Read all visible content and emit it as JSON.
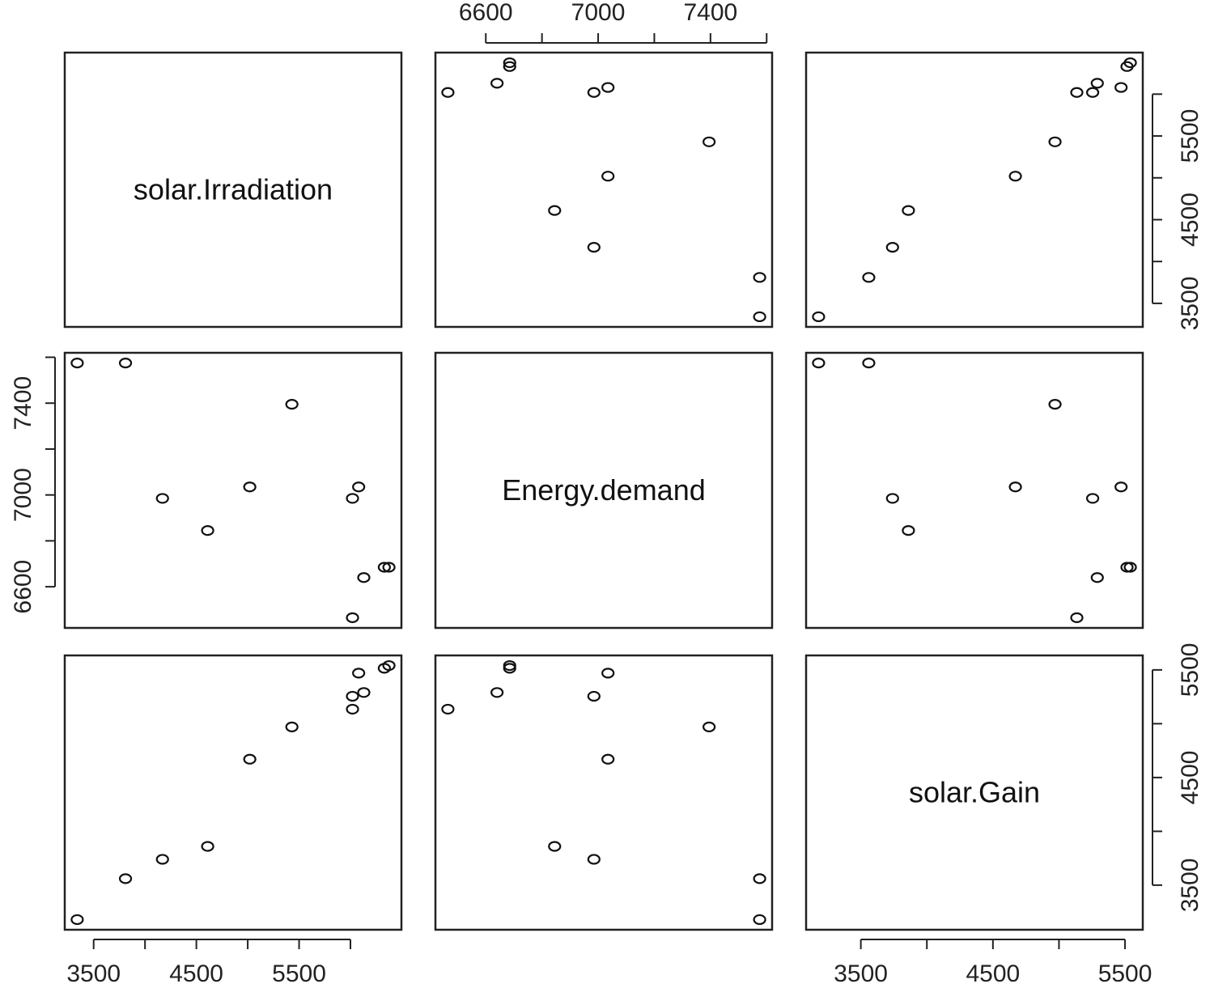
{
  "chart_data": {
    "type": "scatter",
    "subtype": "pairs-matrix",
    "variables": [
      "solar.Irradiation",
      "Energy.demand",
      "solar.Gain"
    ],
    "observations": [
      {
        "solar.Irradiation": 3340,
        "Energy.demand": 7575,
        "solar.Gain": 3180
      },
      {
        "solar.Irradiation": 3810,
        "Energy.demand": 7575,
        "solar.Gain": 3560
      },
      {
        "solar.Irradiation": 4170,
        "Energy.demand": 6985,
        "solar.Gain": 3740
      },
      {
        "solar.Irradiation": 4610,
        "Energy.demand": 6845,
        "solar.Gain": 3860
      },
      {
        "solar.Irradiation": 5020,
        "Energy.demand": 7035,
        "solar.Gain": 4670
      },
      {
        "solar.Irradiation": 5430,
        "Energy.demand": 7395,
        "solar.Gain": 4970
      },
      {
        "solar.Irradiation": 6020,
        "Energy.demand": 6465,
        "solar.Gain": 5135
      },
      {
        "solar.Irradiation": 6020,
        "Energy.demand": 6985,
        "solar.Gain": 5255
      },
      {
        "solar.Irradiation": 6080,
        "Energy.demand": 7035,
        "solar.Gain": 5470
      },
      {
        "solar.Irradiation": 6130,
        "Energy.demand": 6640,
        "solar.Gain": 5290
      },
      {
        "solar.Irradiation": 6330,
        "Energy.demand": 6685,
        "solar.Gain": 5515
      },
      {
        "solar.Irradiation": 6375,
        "Energy.demand": 6685,
        "solar.Gain": 5540
      }
    ],
    "axes": {
      "solar.Irradiation": {
        "ticks": [
          3500,
          4000,
          4500,
          5000,
          5500,
          6000
        ],
        "labels": [
          "3500",
          "4500",
          "5500"
        ]
      },
      "Energy.demand": {
        "ticks": [
          6600,
          6800,
          7000,
          7200,
          7400,
          7600
        ],
        "labels": [
          "6600",
          "7000",
          "7400"
        ]
      },
      "solar.Gain": {
        "ticks": [
          3500,
          4000,
          4500,
          5000,
          5500
        ],
        "labels": [
          "3500",
          "4500",
          "5500"
        ]
      }
    },
    "marker": "open-circle",
    "grid": false,
    "title": "",
    "legend": "none"
  }
}
